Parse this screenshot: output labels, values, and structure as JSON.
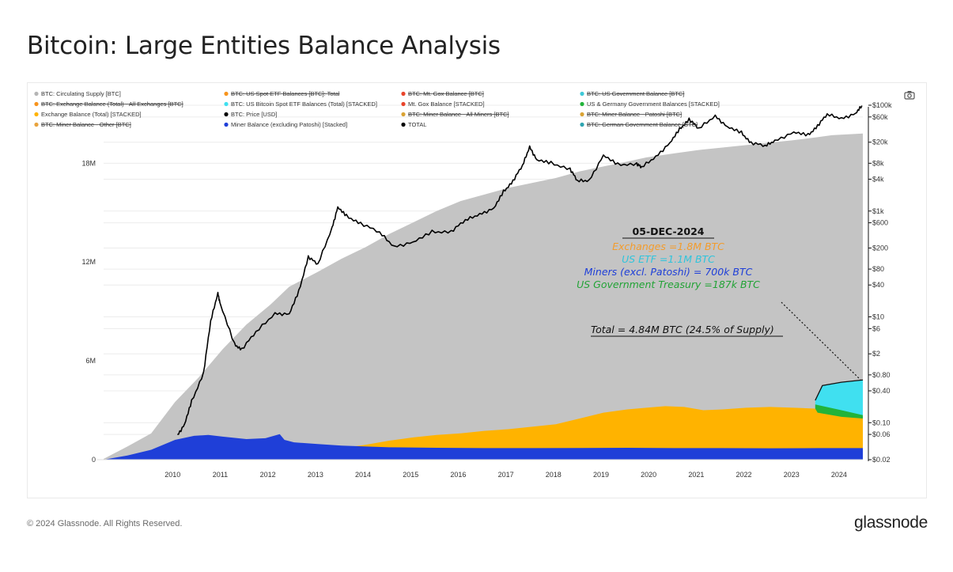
{
  "title": "Bitcoin: Large Entities Balance Analysis",
  "footer": {
    "copyright": "© 2024 Glassnode. All Rights Reserved.",
    "logo": "glassnode"
  },
  "toolbar": {
    "screenshot_icon": "camera-icon"
  },
  "chart_data": {
    "type": "area",
    "x_ticks": [
      "2010",
      "2011",
      "2012",
      "2013",
      "2014",
      "2015",
      "2016",
      "2017",
      "2018",
      "2019",
      "2020",
      "2021",
      "2022",
      "2023",
      "2024"
    ],
    "x_range": [
      2009.0,
      2024.95
    ],
    "y_left": {
      "ticks": [
        "0",
        "6M",
        "12M",
        "18M"
      ],
      "values": [
        0,
        6000000,
        12000000,
        18000000
      ],
      "range": [
        0,
        22000000
      ],
      "scale": "linear"
    },
    "y_right": {
      "ticks": [
        "$100k",
        "$60k",
        "$20k",
        "$8k",
        "$4k",
        "$1k",
        "$600",
        "$200",
        "$80",
        "$40",
        "$10",
        "$6",
        "$2",
        "$0.80",
        "$0.40",
        "$0.10",
        "$0.06",
        "$0.02"
      ],
      "values": [
        100000,
        60000,
        20000,
        8000,
        4000,
        1000,
        600,
        200,
        80,
        40,
        10,
        6,
        2,
        0.8,
        0.4,
        0.1,
        0.06,
        0.02
      ],
      "range": [
        0.02,
        100000
      ],
      "scale": "log"
    },
    "grid": true,
    "legend_position": "top",
    "legend": [
      {
        "label": "BTC: Circulating Supply [BTC]",
        "color": "#b5b5b5",
        "struck": false
      },
      {
        "label": "BTC: Exchange Balance (Total) - All Exchanges [BTC]",
        "color": "#f7941d",
        "struck": true
      },
      {
        "label": "Exchange Balance (Total) [STACKED]",
        "color": "#ffb300",
        "struck": false
      },
      {
        "label": "BTC: Miner Balance - Other [BTC]",
        "color": "#e8a33d",
        "struck": true
      },
      {
        "label": "BTC: US Spot ETF Balances [BTC]: Total",
        "color": "#f7941d",
        "struck": true
      },
      {
        "label": "BTC: US Bitcoin Spot ETF Balances (Total) [STACKED]",
        "color": "#40e0f0",
        "struck": false
      },
      {
        "label": "BTC: Price [USD]",
        "color": "#000000",
        "struck": false
      },
      {
        "label": "Miner Balance (excluding Patoshi) [Stacked]",
        "color": "#1f3fd8",
        "struck": false
      },
      {
        "label": "BTC: Mt. Gox Balance [BTC]",
        "color": "#e8452c",
        "struck": true
      },
      {
        "label": "Mt. Gox Balance [STACKED]",
        "color": "#e8452c",
        "struck": false
      },
      {
        "label": "BTC: Miner Balance - All Miners [BTC]",
        "color": "#d9a334",
        "struck": true
      },
      {
        "label": "TOTAL",
        "color": "#000000",
        "struck": false
      },
      {
        "label": "BTC: US Government Balance [BTC]",
        "color": "#3fc9d8",
        "struck": true
      },
      {
        "label": "US & Germany Government Balances [STACKED]",
        "color": "#22b33a",
        "struck": false
      },
      {
        "label": "BTC: Miner Balance - Patoshi [BTC]",
        "color": "#d9a334",
        "struck": true
      },
      {
        "label": "BTC: German Government Balance [BTC]",
        "color": "#2ea4b0",
        "struck": true
      }
    ],
    "series": [
      {
        "name": "BTC: Circulating Supply [BTC]",
        "axis": "left",
        "color": "#c4c4c4",
        "x": [
          2009.0,
          2009.5,
          2010.0,
          2010.5,
          2011.0,
          2011.5,
          2012.0,
          2012.5,
          2012.9,
          2013.5,
          2014.0,
          2014.5,
          2015.0,
          2015.5,
          2016.0,
          2016.5,
          2017.0,
          2017.5,
          2018.0,
          2018.5,
          2019.0,
          2019.5,
          2020.0,
          2020.4,
          2021.0,
          2021.5,
          2022.0,
          2022.5,
          2023.0,
          2023.5,
          2024.0,
          2024.3,
          2024.95
        ],
        "values": [
          50000,
          800000,
          1600000,
          3500000,
          5000000,
          6700000,
          8200000,
          9400000,
          10500000,
          11400000,
          12200000,
          12900000,
          13700000,
          14400000,
          15100000,
          15700000,
          16100000,
          16500000,
          16800000,
          17100000,
          17500000,
          17800000,
          18100000,
          18350000,
          18600000,
          18800000,
          18950000,
          19100000,
          19250000,
          19400000,
          19580000,
          19700000,
          19800000
        ]
      },
      {
        "name": "Miner Balance (excluding Patoshi) [Stacked]",
        "axis": "left",
        "color": "#1f3fd8",
        "x": [
          2009.0,
          2009.5,
          2010.0,
          2010.5,
          2010.9,
          2011.2,
          2011.5,
          2012.0,
          2012.4,
          2012.7,
          2012.8,
          2013.0,
          2013.5,
          2014.0,
          2015.0,
          2016.0,
          2017.0,
          2018.0,
          2019.0,
          2020.0,
          2021.0,
          2022.0,
          2023.0,
          2024.0,
          2024.95
        ],
        "values": [
          0,
          250000,
          600000,
          1200000,
          1450000,
          1500000,
          1400000,
          1250000,
          1300000,
          1550000,
          1200000,
          1050000,
          950000,
          850000,
          750000,
          720000,
          700000,
          700000,
          710000,
          720000,
          700000,
          700000,
          690000,
          700000,
          700000
        ]
      },
      {
        "name": "Exchange Balance (Total) [STACKED]",
        "axis": "left",
        "color": "#ffb300",
        "x": [
          2014.0,
          2014.5,
          2015.0,
          2015.5,
          2016.0,
          2016.5,
          2017.0,
          2017.5,
          2018.0,
          2018.5,
          2019.0,
          2019.5,
          2020.0,
          2020.4,
          2020.8,
          2021.2,
          2021.6,
          2022.0,
          2022.5,
          2023.0,
          2023.5,
          2023.95,
          2024.0,
          2024.5,
          2024.95
        ],
        "values": [
          700000,
          900000,
          1150000,
          1350000,
          1500000,
          1600000,
          1750000,
          1850000,
          2000000,
          2150000,
          2500000,
          2850000,
          3050000,
          3150000,
          3250000,
          3200000,
          3000000,
          3050000,
          3150000,
          3200000,
          3150000,
          3100000,
          2850000,
          2600000,
          2500000
        ]
      },
      {
        "name": "US & Germany Government Balances [STACKED]",
        "axis": "left",
        "color": "#22b33a",
        "x": [
          2023.95,
          2024.5,
          2024.95
        ],
        "values": [
          3350000,
          3000000,
          2700000
        ]
      },
      {
        "name": "BTC: US Bitcoin Spot ETF Balances (Total) [STACKED]",
        "axis": "left",
        "color": "#40e0f0",
        "x": [
          2023.95,
          2024.1,
          2024.5,
          2024.95
        ],
        "values": [
          3600000,
          4500000,
          4700000,
          4840000
        ]
      },
      {
        "name": "BTC: Price [USD]",
        "axis": "right",
        "color": "#000000",
        "x": [
          2010.55,
          2010.7,
          2010.85,
          2011.1,
          2011.25,
          2011.4,
          2011.45,
          2011.75,
          2011.9,
          2012.2,
          2012.6,
          2012.9,
          2013.1,
          2013.3,
          2013.5,
          2013.8,
          2013.92,
          2014.1,
          2014.4,
          2014.8,
          2015.1,
          2015.5,
          2015.9,
          2016.3,
          2016.6,
          2016.9,
          2017.2,
          2017.4,
          2017.6,
          2017.8,
          2017.95,
          2018.1,
          2018.4,
          2018.8,
          2018.95,
          2019.2,
          2019.5,
          2019.8,
          2020.2,
          2020.3,
          2020.6,
          2020.9,
          2021.1,
          2021.3,
          2021.5,
          2021.85,
          2022.1,
          2022.4,
          2022.6,
          2022.9,
          2023.1,
          2023.5,
          2023.8,
          2024.0,
          2024.2,
          2024.5,
          2024.8,
          2024.93
        ],
        "values": [
          0.06,
          0.09,
          0.25,
          0.9,
          8,
          29,
          17,
          3,
          2.5,
          5,
          12,
          11,
          30,
          140,
          95,
          500,
          1150,
          800,
          600,
          380,
          220,
          250,
          400,
          420,
          650,
          900,
          1100,
          2300,
          3800,
          7000,
          17000,
          9000,
          8000,
          6400,
          3600,
          3900,
          11000,
          7500,
          8000,
          6500,
          11000,
          19000,
          35000,
          56000,
          35000,
          65000,
          38000,
          30000,
          20000,
          16500,
          22000,
          30000,
          27000,
          42000,
          65000,
          58000,
          68000,
          98000
        ]
      }
    ],
    "annotation": {
      "date": "05-DEC-2024",
      "lines": [
        {
          "text": "Exchanges =1.8M BTC",
          "color": "#f39c2c"
        },
        {
          "text": "US ETF =1.1M BTC",
          "color": "#2ec4dc"
        },
        {
          "text": "Miners (excl. Patoshi) = 700k BTC",
          "color": "#1f3fd8"
        },
        {
          "text": "US Government Treasury =187k BTC",
          "color": "#22a336"
        }
      ],
      "total": "Total =  4.84M BTC (24.5% of Supply)"
    }
  }
}
